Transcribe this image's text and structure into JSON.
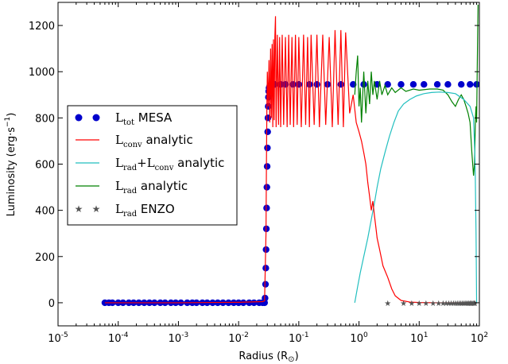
{
  "chart_data": {
    "type": "line",
    "xlabel": "Radius (R",
    "xlabel_sub": "⊙",
    "xlabel_close": ")",
    "ylabel": "Luminosity (erg·s",
    "ylabel_sup": "−1",
    "ylabel_close": ")",
    "xscale": "log",
    "xlim": [
      1e-05,
      100
    ],
    "ylim": [
      -100,
      1300
    ],
    "x_ticks": [
      {
        "base": "10",
        "exp": "-5",
        "value": 1e-05
      },
      {
        "base": "10",
        "exp": "-4",
        "value": 0.0001
      },
      {
        "base": "10",
        "exp": "-3",
        "value": 0.001
      },
      {
        "base": "10",
        "exp": "-2",
        "value": 0.01
      },
      {
        "base": "10",
        "exp": "-1",
        "value": 0.1
      },
      {
        "base": "10",
        "exp": "0",
        "value": 1
      },
      {
        "base": "10",
        "exp": "1",
        "value": 10
      },
      {
        "base": "10",
        "exp": "2",
        "value": 100
      }
    ],
    "y_ticks": [
      0,
      200,
      400,
      600,
      800,
      1000,
      1200
    ],
    "legend_position": "center-left",
    "series": [
      {
        "key": "mesa",
        "label_main": "L",
        "label_sub": "tot",
        "label_rest": " MESA",
        "color": "#0000cc",
        "marker": "circle",
        "points": [
          [
            6e-05,
            0
          ],
          [
            7e-05,
            0
          ],
          [
            8e-05,
            0
          ],
          [
            0.0001,
            0
          ],
          [
            0.00012,
            0
          ],
          [
            0.00015,
            0
          ],
          [
            0.00018,
            0
          ],
          [
            0.00022,
            0
          ],
          [
            0.00027,
            0
          ],
          [
            0.00033,
            0
          ],
          [
            0.0004,
            0
          ],
          [
            0.0005,
            0
          ],
          [
            0.0006,
            0
          ],
          [
            0.00075,
            0
          ],
          [
            0.0009,
            0
          ],
          [
            0.0011,
            0
          ],
          [
            0.0014,
            0
          ],
          [
            0.0017,
            0
          ],
          [
            0.002,
            0
          ],
          [
            0.0025,
            0
          ],
          [
            0.003,
            0
          ],
          [
            0.0037,
            0
          ],
          [
            0.0045,
            0
          ],
          [
            0.0055,
            0
          ],
          [
            0.0068,
            0
          ],
          [
            0.0083,
            0
          ],
          [
            0.01,
            0
          ],
          [
            0.012,
            0
          ],
          [
            0.015,
            0
          ],
          [
            0.018,
            0
          ],
          [
            0.022,
            0
          ],
          [
            0.025,
            0
          ],
          [
            0.027,
            0
          ],
          [
            0.0275,
            20
          ],
          [
            0.028,
            80
          ],
          [
            0.0283,
            150
          ],
          [
            0.0286,
            230
          ],
          [
            0.0289,
            320
          ],
          [
            0.0292,
            410
          ],
          [
            0.0295,
            500
          ],
          [
            0.0298,
            590
          ],
          [
            0.0301,
            670
          ],
          [
            0.0304,
            740
          ],
          [
            0.0307,
            800
          ],
          [
            0.031,
            850
          ],
          [
            0.0313,
            890
          ],
          [
            0.0316,
            915
          ],
          [
            0.032,
            930
          ],
          [
            0.033,
            940
          ],
          [
            0.035,
            944
          ],
          [
            0.04,
            945
          ],
          [
            0.05,
            945
          ],
          [
            0.06,
            945
          ],
          [
            0.08,
            945
          ],
          [
            0.1,
            945
          ],
          [
            0.15,
            945
          ],
          [
            0.2,
            945
          ],
          [
            0.3,
            945
          ],
          [
            0.5,
            945
          ],
          [
            0.8,
            945
          ],
          [
            1.2,
            945
          ],
          [
            2,
            945
          ],
          [
            3,
            945
          ],
          [
            5,
            945
          ],
          [
            8,
            945
          ],
          [
            12,
            945
          ],
          [
            20,
            945
          ],
          [
            30,
            945
          ],
          [
            50,
            945
          ],
          [
            70,
            945
          ],
          [
            90,
            945
          ]
        ]
      },
      {
        "key": "conv",
        "label_main": "L",
        "label_sub": "conv",
        "label_rest": " analytic",
        "color": "#ff0000",
        "marker": "none",
        "points": [
          [
            6e-05,
            0
          ],
          [
            0.001,
            0
          ],
          [
            0.01,
            2
          ],
          [
            0.025,
            5
          ],
          [
            0.027,
            8
          ],
          [
            0.0285,
            300
          ],
          [
            0.029,
            600
          ],
          [
            0.0295,
            850
          ],
          [
            0.03,
            1000
          ],
          [
            0.031,
            850
          ],
          [
            0.032,
            1050
          ],
          [
            0.033,
            780
          ],
          [
            0.034,
            1100
          ],
          [
            0.035,
            800
          ],
          [
            0.036,
            1120
          ],
          [
            0.037,
            760
          ],
          [
            0.038,
            1140
          ],
          [
            0.039,
            790
          ],
          [
            0.04,
            1150
          ],
          [
            0.041,
            1240
          ],
          [
            0.042,
            760
          ],
          [
            0.044,
            1160
          ],
          [
            0.046,
            770
          ],
          [
            0.048,
            1150
          ],
          [
            0.05,
            760
          ],
          [
            0.053,
            1160
          ],
          [
            0.056,
            770
          ],
          [
            0.06,
            1150
          ],
          [
            0.064,
            760
          ],
          [
            0.068,
            1160
          ],
          [
            0.072,
            770
          ],
          [
            0.077,
            1150
          ],
          [
            0.082,
            760
          ],
          [
            0.088,
            1160
          ],
          [
            0.094,
            770
          ],
          [
            0.1,
            1150
          ],
          [
            0.11,
            760
          ],
          [
            0.12,
            1160
          ],
          [
            0.13,
            770
          ],
          [
            0.14,
            1150
          ],
          [
            0.15,
            760
          ],
          [
            0.16,
            1160
          ],
          [
            0.18,
            770
          ],
          [
            0.2,
            1160
          ],
          [
            0.22,
            760
          ],
          [
            0.25,
            1160
          ],
          [
            0.28,
            770
          ],
          [
            0.32,
            1150
          ],
          [
            0.36,
            760
          ],
          [
            0.4,
            1180
          ],
          [
            0.45,
            770
          ],
          [
            0.5,
            1180
          ],
          [
            0.55,
            760
          ],
          [
            0.6,
            1170
          ],
          [
            0.7,
            820
          ],
          [
            0.8,
            900
          ],
          [
            0.9,
            780
          ],
          [
            1.0,
            740
          ],
          [
            1.1,
            700
          ],
          [
            1.2,
            650
          ],
          [
            1.3,
            600
          ],
          [
            1.4,
            520
          ],
          [
            1.5,
            460
          ],
          [
            1.6,
            400
          ],
          [
            1.7,
            440
          ],
          [
            1.8,
            380
          ],
          [
            1.9,
            330
          ],
          [
            2.0,
            280
          ],
          [
            2.2,
            230
          ],
          [
            2.5,
            160
          ],
          [
            3.0,
            110
          ],
          [
            3.5,
            60
          ],
          [
            4.0,
            30
          ],
          [
            5.0,
            10
          ],
          [
            7.0,
            3
          ],
          [
            10,
            1
          ],
          [
            20,
            0
          ],
          [
            50,
            0
          ],
          [
            90,
            0
          ]
        ]
      },
      {
        "key": "radconv",
        "label_main": "L",
        "label_sub": "rad",
        "label_mid": "+L",
        "label_sub2": "conv",
        "label_rest": " analytic",
        "color": "#22bfbf",
        "marker": "none",
        "points": [
          [
            0.85,
            0
          ],
          [
            0.95,
            70
          ],
          [
            1.05,
            130
          ],
          [
            1.2,
            200
          ],
          [
            1.4,
            280
          ],
          [
            1.6,
            360
          ],
          [
            1.8,
            430
          ],
          [
            2.0,
            500
          ],
          [
            2.3,
            580
          ],
          [
            2.7,
            650
          ],
          [
            3.2,
            720
          ],
          [
            3.8,
            780
          ],
          [
            4.5,
            830
          ],
          [
            5.5,
            860
          ],
          [
            7.0,
            880
          ],
          [
            9.0,
            895
          ],
          [
            12,
            905
          ],
          [
            16,
            910
          ],
          [
            22,
            912
          ],
          [
            30,
            910
          ],
          [
            40,
            905
          ],
          [
            55,
            880
          ],
          [
            70,
            850
          ],
          [
            80,
            800
          ],
          [
            85,
            600
          ],
          [
            88,
            300
          ],
          [
            90,
            0
          ]
        ]
      },
      {
        "key": "rad",
        "label_main": "L",
        "label_sub": "rad",
        "label_rest": " analytic",
        "color": "#008000",
        "marker": "none",
        "points": [
          [
            0.85,
            900
          ],
          [
            0.9,
            1000
          ],
          [
            0.95,
            1070
          ],
          [
            1.0,
            850
          ],
          [
            1.05,
            930
          ],
          [
            1.1,
            780
          ],
          [
            1.2,
            1000
          ],
          [
            1.3,
            820
          ],
          [
            1.4,
            960
          ],
          [
            1.5,
            860
          ],
          [
            1.6,
            1000
          ],
          [
            1.7,
            900
          ],
          [
            1.8,
            960
          ],
          [
            2.0,
            880
          ],
          [
            2.2,
            960
          ],
          [
            2.4,
            900
          ],
          [
            2.7,
            940
          ],
          [
            3.0,
            900
          ],
          [
            3.5,
            930
          ],
          [
            4.0,
            910
          ],
          [
            5.0,
            930
          ],
          [
            6.0,
            915
          ],
          [
            8.0,
            925
          ],
          [
            10,
            920
          ],
          [
            15,
            925
          ],
          [
            20,
            925
          ],
          [
            25,
            920
          ],
          [
            30,
            900
          ],
          [
            35,
            870
          ],
          [
            40,
            850
          ],
          [
            45,
            880
          ],
          [
            50,
            900
          ],
          [
            55,
            880
          ],
          [
            60,
            850
          ],
          [
            65,
            820
          ],
          [
            70,
            780
          ],
          [
            75,
            650
          ],
          [
            80,
            550
          ],
          [
            83,
            600
          ],
          [
            86,
            800
          ],
          [
            88,
            850
          ],
          [
            90,
            780
          ],
          [
            92,
            1000
          ],
          [
            95,
            1290
          ]
        ]
      },
      {
        "key": "enzo",
        "label_main": "L",
        "label_sub": "rad",
        "label_rest": " ENZO",
        "color": "#555555",
        "marker": "star",
        "points": [
          [
            3.0,
            0
          ],
          [
            5.5,
            0
          ],
          [
            7.5,
            0
          ],
          [
            10,
            0
          ],
          [
            13,
            0
          ],
          [
            17,
            0
          ],
          [
            21,
            0
          ],
          [
            25,
            0
          ],
          [
            28,
            0
          ],
          [
            31,
            0
          ],
          [
            34,
            0
          ],
          [
            37,
            0
          ],
          [
            40,
            0
          ],
          [
            43,
            0
          ],
          [
            46,
            0
          ],
          [
            49,
            0
          ],
          [
            52,
            0
          ],
          [
            55,
            0
          ],
          [
            58,
            0
          ],
          [
            61,
            0
          ],
          [
            64,
            0
          ],
          [
            67,
            0
          ],
          [
            70,
            0
          ],
          [
            73,
            0
          ],
          [
            76,
            0
          ],
          [
            79,
            0
          ],
          [
            82,
            0
          ],
          [
            85,
            0
          ]
        ]
      }
    ]
  }
}
